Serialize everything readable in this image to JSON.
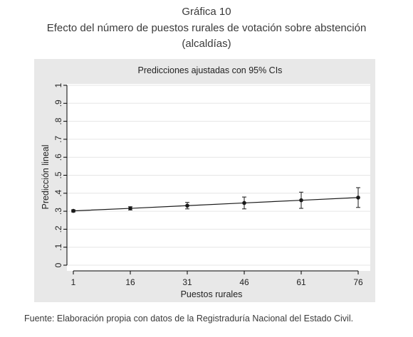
{
  "header": {
    "line1": "Gráfica 10",
    "line2": "Efecto del número de puestos rurales de votación sobre abstención",
    "line3": "(alcaldías)"
  },
  "footer": {
    "source": "Fuente: Elaboración propia con datos de la Registraduría Nacional del Estado Civil."
  },
  "colors": {
    "panel": "#e8e8e8",
    "plot_bg": "#ffffff",
    "line": "#1a1a1a",
    "grid": "#e6e6e6"
  },
  "chart_data": {
    "type": "line",
    "title": "Predicciones ajustadas con 95% CIs",
    "xlabel": "Puestos rurales",
    "ylabel": "Predicción lineal",
    "x": [
      1,
      16,
      31,
      46,
      61,
      76
    ],
    "x_tick_labels": [
      "1",
      "16",
      "31",
      "46",
      "61",
      "76"
    ],
    "y_ticks": [
      0,
      0.1,
      0.2,
      0.3,
      0.4,
      0.5,
      0.6,
      0.7,
      0.8,
      0.9,
      1
    ],
    "y_tick_labels": [
      "0",
      ".1",
      ".2",
      ".3",
      ".4",
      ".5",
      ".6",
      ".7",
      ".8",
      ".9",
      "1"
    ],
    "xlim": [
      1,
      76
    ],
    "ylim": [
      0,
      1
    ],
    "grid": true,
    "series": [
      {
        "values": [
          0.302,
          0.316,
          0.331,
          0.346,
          0.361,
          0.376
        ],
        "ci_lower": [
          0.296,
          0.307,
          0.313,
          0.313,
          0.316,
          0.321
        ],
        "ci_upper": [
          0.308,
          0.325,
          0.349,
          0.379,
          0.406,
          0.431
        ]
      }
    ]
  }
}
